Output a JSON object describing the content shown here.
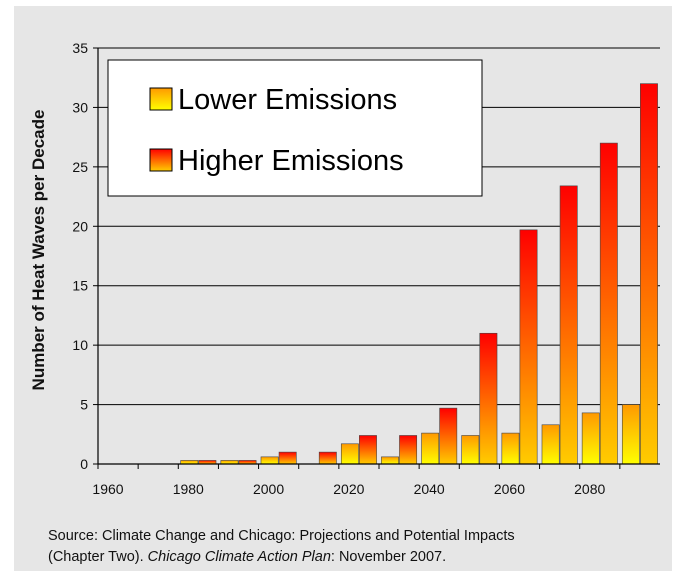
{
  "chart_data": {
    "type": "bar",
    "title": "",
    "xlabel": "",
    "ylabel": "Number of Heat Waves per Decade",
    "ylim": [
      0,
      35
    ],
    "y_ticks": [
      "0",
      "5",
      "10",
      "15",
      "20",
      "25",
      "30",
      "35"
    ],
    "x_ticks": [
      "1960",
      "1980",
      "2000",
      "2020",
      "2040",
      "2060",
      "2080"
    ],
    "categories": [
      "1960s",
      "1970s",
      "1980s",
      "1990s",
      "2000s",
      "2010s",
      "2020s",
      "2030s",
      "2040s",
      "2050s",
      "2060s",
      "2070s",
      "2080s",
      "2090s"
    ],
    "series": [
      {
        "name": "Lower Emissions",
        "values": [
          0,
          0,
          0.3,
          0.3,
          0.6,
          0,
          1.7,
          0.6,
          2.6,
          2.4,
          2.6,
          3.3,
          4.3,
          5.0
        ],
        "color": "#ffc000"
      },
      {
        "name": "Higher Emissions",
        "values": [
          0,
          0,
          0.3,
          0.3,
          1.0,
          1.0,
          2.4,
          2.4,
          4.7,
          11.0,
          19.7,
          23.4,
          27.0,
          32.0
        ],
        "color": "#ff2000"
      }
    ],
    "grid": true,
    "legend_position": "top-left"
  },
  "caption": {
    "line1": "Source: Climate Change and Chicago: Projections and Potential Impacts",
    "line2_pre": "(Chapter Two). ",
    "line2_italic": "Chicago Climate Action Plan",
    "line2_post": ": November 2007."
  }
}
